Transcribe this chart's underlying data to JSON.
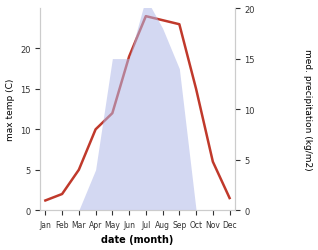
{
  "months": [
    "Jan",
    "Feb",
    "Mar",
    "Apr",
    "May",
    "Jun",
    "Jul",
    "Aug",
    "Sep",
    "Oct",
    "Nov",
    "Dec"
  ],
  "temp": [
    1.2,
    2.0,
    5.0,
    10.0,
    12.0,
    19.0,
    24.0,
    23.5,
    23.0,
    15.0,
    6.0,
    1.5
  ],
  "precip": [
    0.0,
    0.0,
    0.0,
    4.0,
    15.0,
    15.0,
    21.0,
    18.0,
    14.0,
    0.0,
    0.0,
    0.0
  ],
  "temp_color": "#c0392b",
  "precip_fill_color": "#b0b8e8",
  "precip_fill_alpha": 0.55,
  "bg_color": "#ffffff",
  "xlabel": "date (month)",
  "ylabel_left": "max temp (C)",
  "ylabel_right": "med. precipitation (kg/m2)",
  "ylim_left": [
    0,
    25
  ],
  "ylim_right": [
    0,
    20
  ],
  "fig_width": 3.18,
  "fig_height": 2.51,
  "dpi": 100,
  "temp_linewidth": 1.8,
  "tick_fontsize": 6,
  "label_fontsize": 6.5,
  "xlabel_fontsize": 7,
  "month_fontsize": 5.5
}
